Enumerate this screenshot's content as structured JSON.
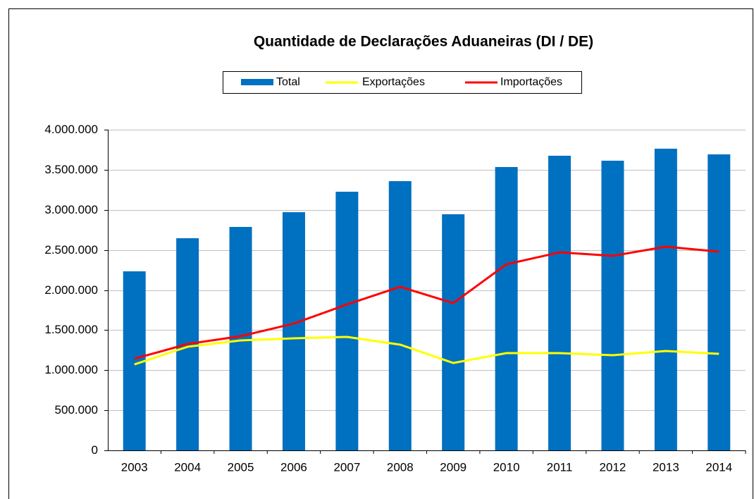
{
  "chart_data": {
    "type": "bar-line",
    "title": "Quantidade de Declarações Aduaneiras (DI / DE)",
    "categories": [
      "2003",
      "2004",
      "2005",
      "2006",
      "2007",
      "2008",
      "2009",
      "2010",
      "2011",
      "2012",
      "2013",
      "2014"
    ],
    "series": [
      {
        "name": "Total",
        "type": "bar",
        "color": "#0070c0",
        "values": [
          2233000,
          2646000,
          2787000,
          2971000,
          3226000,
          3358000,
          2945000,
          3534000,
          3675000,
          3613000,
          3763000,
          3692000
        ]
      },
      {
        "name": "Exportações",
        "type": "line",
        "color": "#ffff00",
        "values": [
          1072000,
          1292000,
          1371000,
          1398000,
          1415000,
          1319000,
          1090000,
          1213000,
          1213000,
          1187000,
          1240000,
          1204000
        ]
      },
      {
        "name": "Importações",
        "type": "line",
        "color": "#ff0000",
        "values": [
          1143000,
          1327000,
          1424000,
          1582000,
          1820000,
          2040000,
          1837000,
          2321000,
          2470000,
          2426000,
          2541000,
          2479000
        ]
      }
    ],
    "ylim": [
      0,
      4000000
    ],
    "yticks": [
      0,
      {
        "value": 500000,
        "label": "500.000"
      },
      {
        "value": 1000000,
        "label": "1.000.000"
      },
      {
        "value": 1500000,
        "label": "1.500.000"
      },
      {
        "value": 2000000,
        "label": "2.000.000"
      },
      {
        "value": 2500000,
        "label": "2.500.000"
      },
      {
        "value": 3000000,
        "label": "3.000.000"
      },
      {
        "value": 3500000,
        "label": "3.500.000"
      },
      {
        "value": 4000000,
        "label": "4.000.000"
      }
    ],
    "grid": true,
    "legend": "top"
  }
}
